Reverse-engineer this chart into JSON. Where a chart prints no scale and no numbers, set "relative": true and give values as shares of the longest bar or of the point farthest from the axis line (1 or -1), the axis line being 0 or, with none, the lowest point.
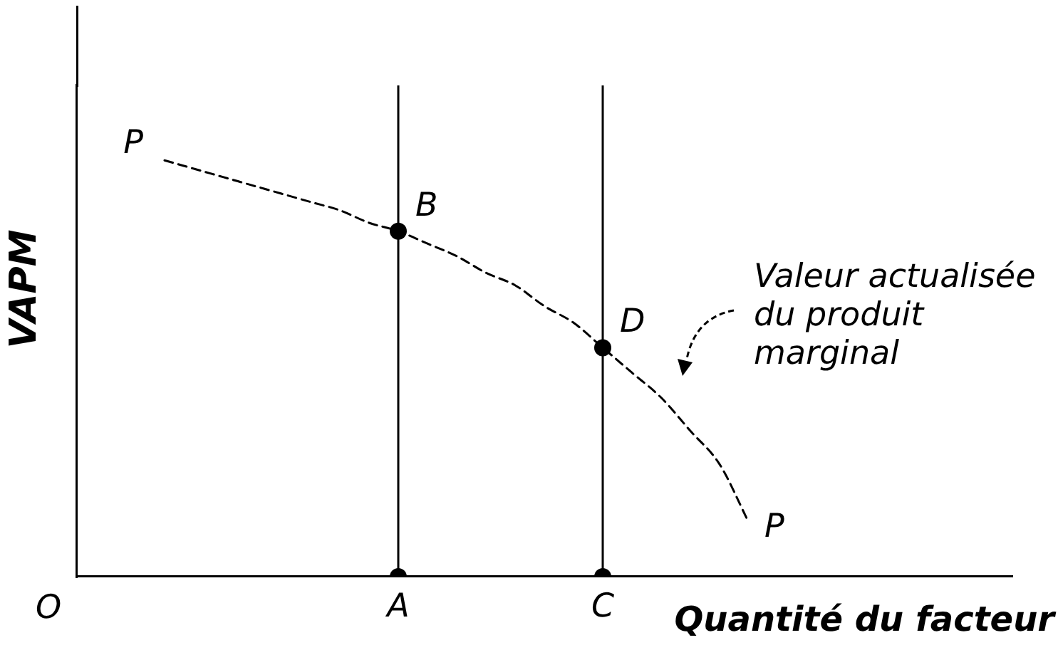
{
  "chart_data": {
    "type": "line",
    "relative": true,
    "xlabel": "Quantité du facteur",
    "ylabel": "VAPM",
    "categories": [
      null,
      null,
      null,
      null,
      null,
      null,
      null,
      null,
      null,
      null,
      null,
      "A",
      null,
      null,
      null,
      null,
      null,
      null,
      "C",
      null,
      null,
      null,
      null,
      null,
      null,
      null,
      null,
      null,
      null,
      null,
      null,
      null,
      null
    ],
    "series": [
      {
        "name": "P",
        "color": "#000000",
        "line_style": "dashed",
        "values": [
          null,
          null,
          null,
          1.0,
          0.98,
          0.96,
          0.94,
          0.92,
          0.9,
          0.88,
          0.85,
          0.83,
          0.8,
          0.77,
          0.73,
          0.7,
          0.65,
          0.61,
          0.55,
          0.49,
          0.43,
          0.35,
          0.27,
          0.13,
          null,
          null,
          null,
          null,
          null,
          null,
          null,
          null,
          null
        ]
      },
      {
        "type": "scatter",
        "color": "#000000",
        "marker": "circle",
        "x": [
          "A",
          "A",
          "C",
          "C"
        ],
        "values": [
          0,
          0.83,
          0,
          0.55
        ]
      }
    ],
    "ref_lines": [
      {
        "axis": "x",
        "value": "A",
        "color": "#000000"
      },
      {
        "axis": "x",
        "value": "C",
        "color": "#000000"
      }
    ],
    "annotations": [
      "O",
      {
        "text": "B",
        "x": "A",
        "y": 0.83
      },
      {
        "text": "D",
        "x": "C",
        "y": 0.55
      },
      "Valeur actualisée\ndu produit\nmarginal"
    ],
    "legend": false,
    "grid": false
  }
}
